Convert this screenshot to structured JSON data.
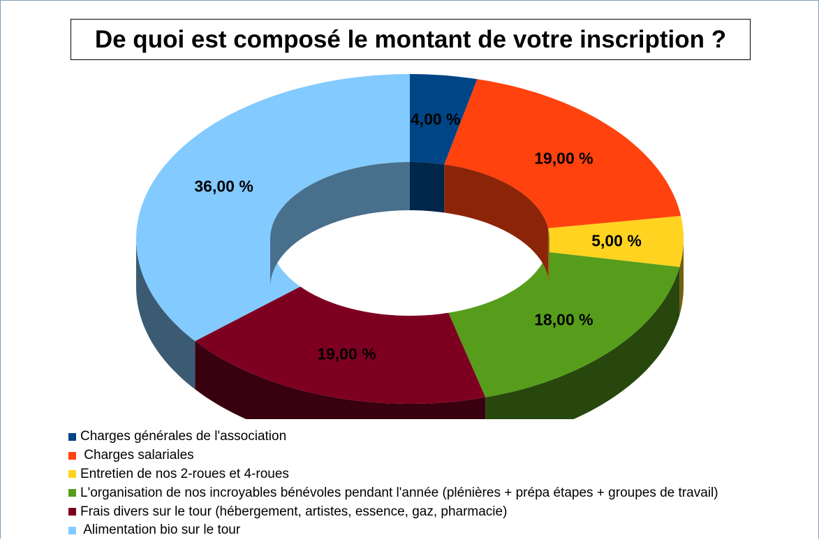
{
  "chart_data": {
    "type": "pie",
    "variant": "3d-donut",
    "title": "De quoi est composé le montant de votre inscription ?",
    "legend_position": "bottom-left",
    "series": [
      {
        "name": "Charges générales de l'association",
        "value": 4,
        "label": "4,00 %",
        "color": "#004586"
      },
      {
        "name": " Charges salariales",
        "value": 19,
        "label": "19,00 %",
        "color": "#ff420e"
      },
      {
        "name": "Entretien de nos 2-roues et 4-roues",
        "value": 5,
        "label": "5,00 %",
        "color": "#ffd320"
      },
      {
        "name": "L'organisation de nos incroyables bénévoles pendant l'année (plénières + prépa étapes + groupes de travail)",
        "value": 18,
        "label": "18,00 %",
        "color": "#579d1c"
      },
      {
        "name": "Frais divers sur le tour (hébergement, artistes, essence, gaz, pharmacie)",
        "value": 19,
        "label": "19,00 %",
        "color": "#7e0021"
      },
      {
        "name": " Alimentation bio sur le tour",
        "value": 36,
        "label": "36,00 %",
        "color": "#83caff"
      }
    ]
  }
}
